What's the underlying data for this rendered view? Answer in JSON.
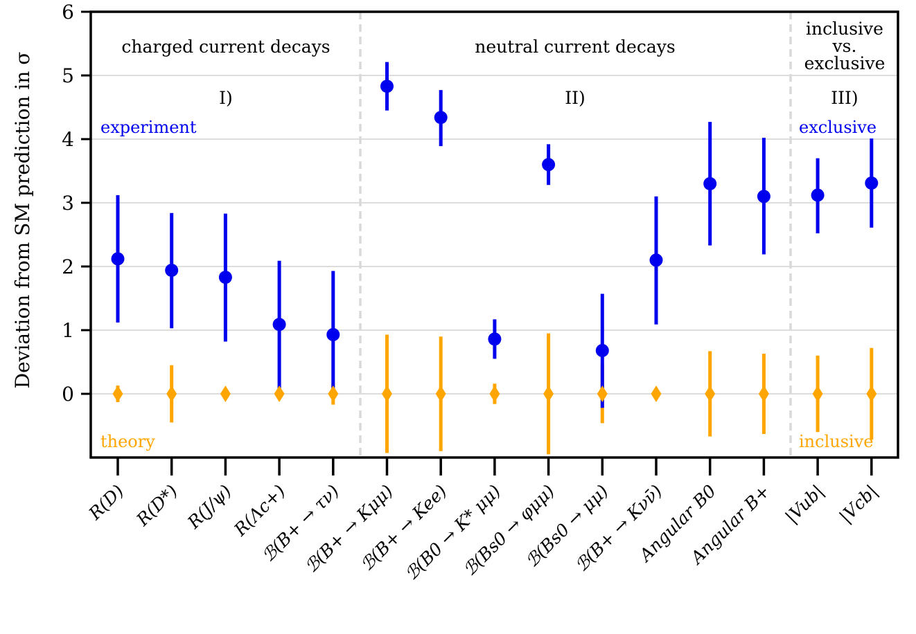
{
  "chart_data": {
    "type": "scatter",
    "ylabel": "Deviation from SM prediction in σ",
    "ylim": [
      -1,
      6
    ],
    "yticks": [
      0,
      1,
      2,
      3,
      4,
      5,
      6
    ],
    "grid": true,
    "categories": [
      "R(D)",
      "R(D*)",
      "R(J/ψ)",
      "R(Λc+)",
      "ℬ(B+ → τν)",
      "ℬ(B+ → Kμμ)",
      "ℬ(B+ → Kee)",
      "ℬ(B0 → K* μμ)",
      "ℬ(Bs0 → φμμ)",
      "ℬ(Bs0 → μμ)",
      "ℬ(B+ → Kνν̄)",
      "Angular B0",
      "Angular B+",
      "|Vub|",
      "|Vcb|"
    ],
    "series": [
      {
        "name": "experiment",
        "color": "#0000ee",
        "marker": "circle",
        "values": [
          2.12,
          1.94,
          1.83,
          1.09,
          0.93,
          4.83,
          4.34,
          0.86,
          3.6,
          0.68,
          2.1,
          3.3,
          3.1,
          3.12,
          3.31
        ],
        "err_low": [
          1.0,
          0.91,
          1.01,
          1.01,
          1.0,
          0.38,
          0.45,
          0.31,
          0.32,
          0.9,
          1.01,
          0.97,
          0.91,
          0.6,
          0.7
        ],
        "err_high": [
          1.0,
          0.9,
          1.0,
          1.0,
          1.0,
          0.38,
          0.43,
          0.31,
          0.32,
          0.89,
          1.0,
          0.97,
          0.92,
          0.58,
          0.7
        ]
      },
      {
        "name": "theory",
        "color": "#ffa500",
        "marker": "diamond",
        "values": [
          0,
          0,
          0,
          0,
          0,
          0,
          0,
          0,
          0,
          0,
          0,
          0,
          0,
          0,
          0
        ],
        "err_low": [
          0.13,
          0.45,
          0.0,
          0.0,
          0.17,
          0.93,
          0.9,
          0.16,
          0.95,
          0.46,
          0.0,
          0.67,
          0.63,
          0.6,
          0.72
        ],
        "err_high": [
          0.13,
          0.45,
          0.0,
          0.0,
          0.17,
          0.93,
          0.9,
          0.16,
          0.95,
          0.46,
          0.0,
          0.67,
          0.63,
          0.6,
          0.72
        ]
      }
    ],
    "sections": [
      {
        "title_lines": [
          "charged current decays"
        ],
        "roman": "I)"
      },
      {
        "title_lines": [
          "neutral current decays"
        ],
        "roman": "II)"
      },
      {
        "title_lines": [
          "inclusive",
          "vs.",
          "exclusive"
        ],
        "roman": "III)"
      }
    ],
    "annotations": {
      "experiment": "experiment",
      "theory": "theory",
      "exclusive": "exclusive",
      "inclusive": "inclusive"
    },
    "colors": {
      "experiment": "#0000ee",
      "theory": "#ffa500",
      "grid": "#dddddd",
      "divider": "#d9d9d9"
    }
  }
}
